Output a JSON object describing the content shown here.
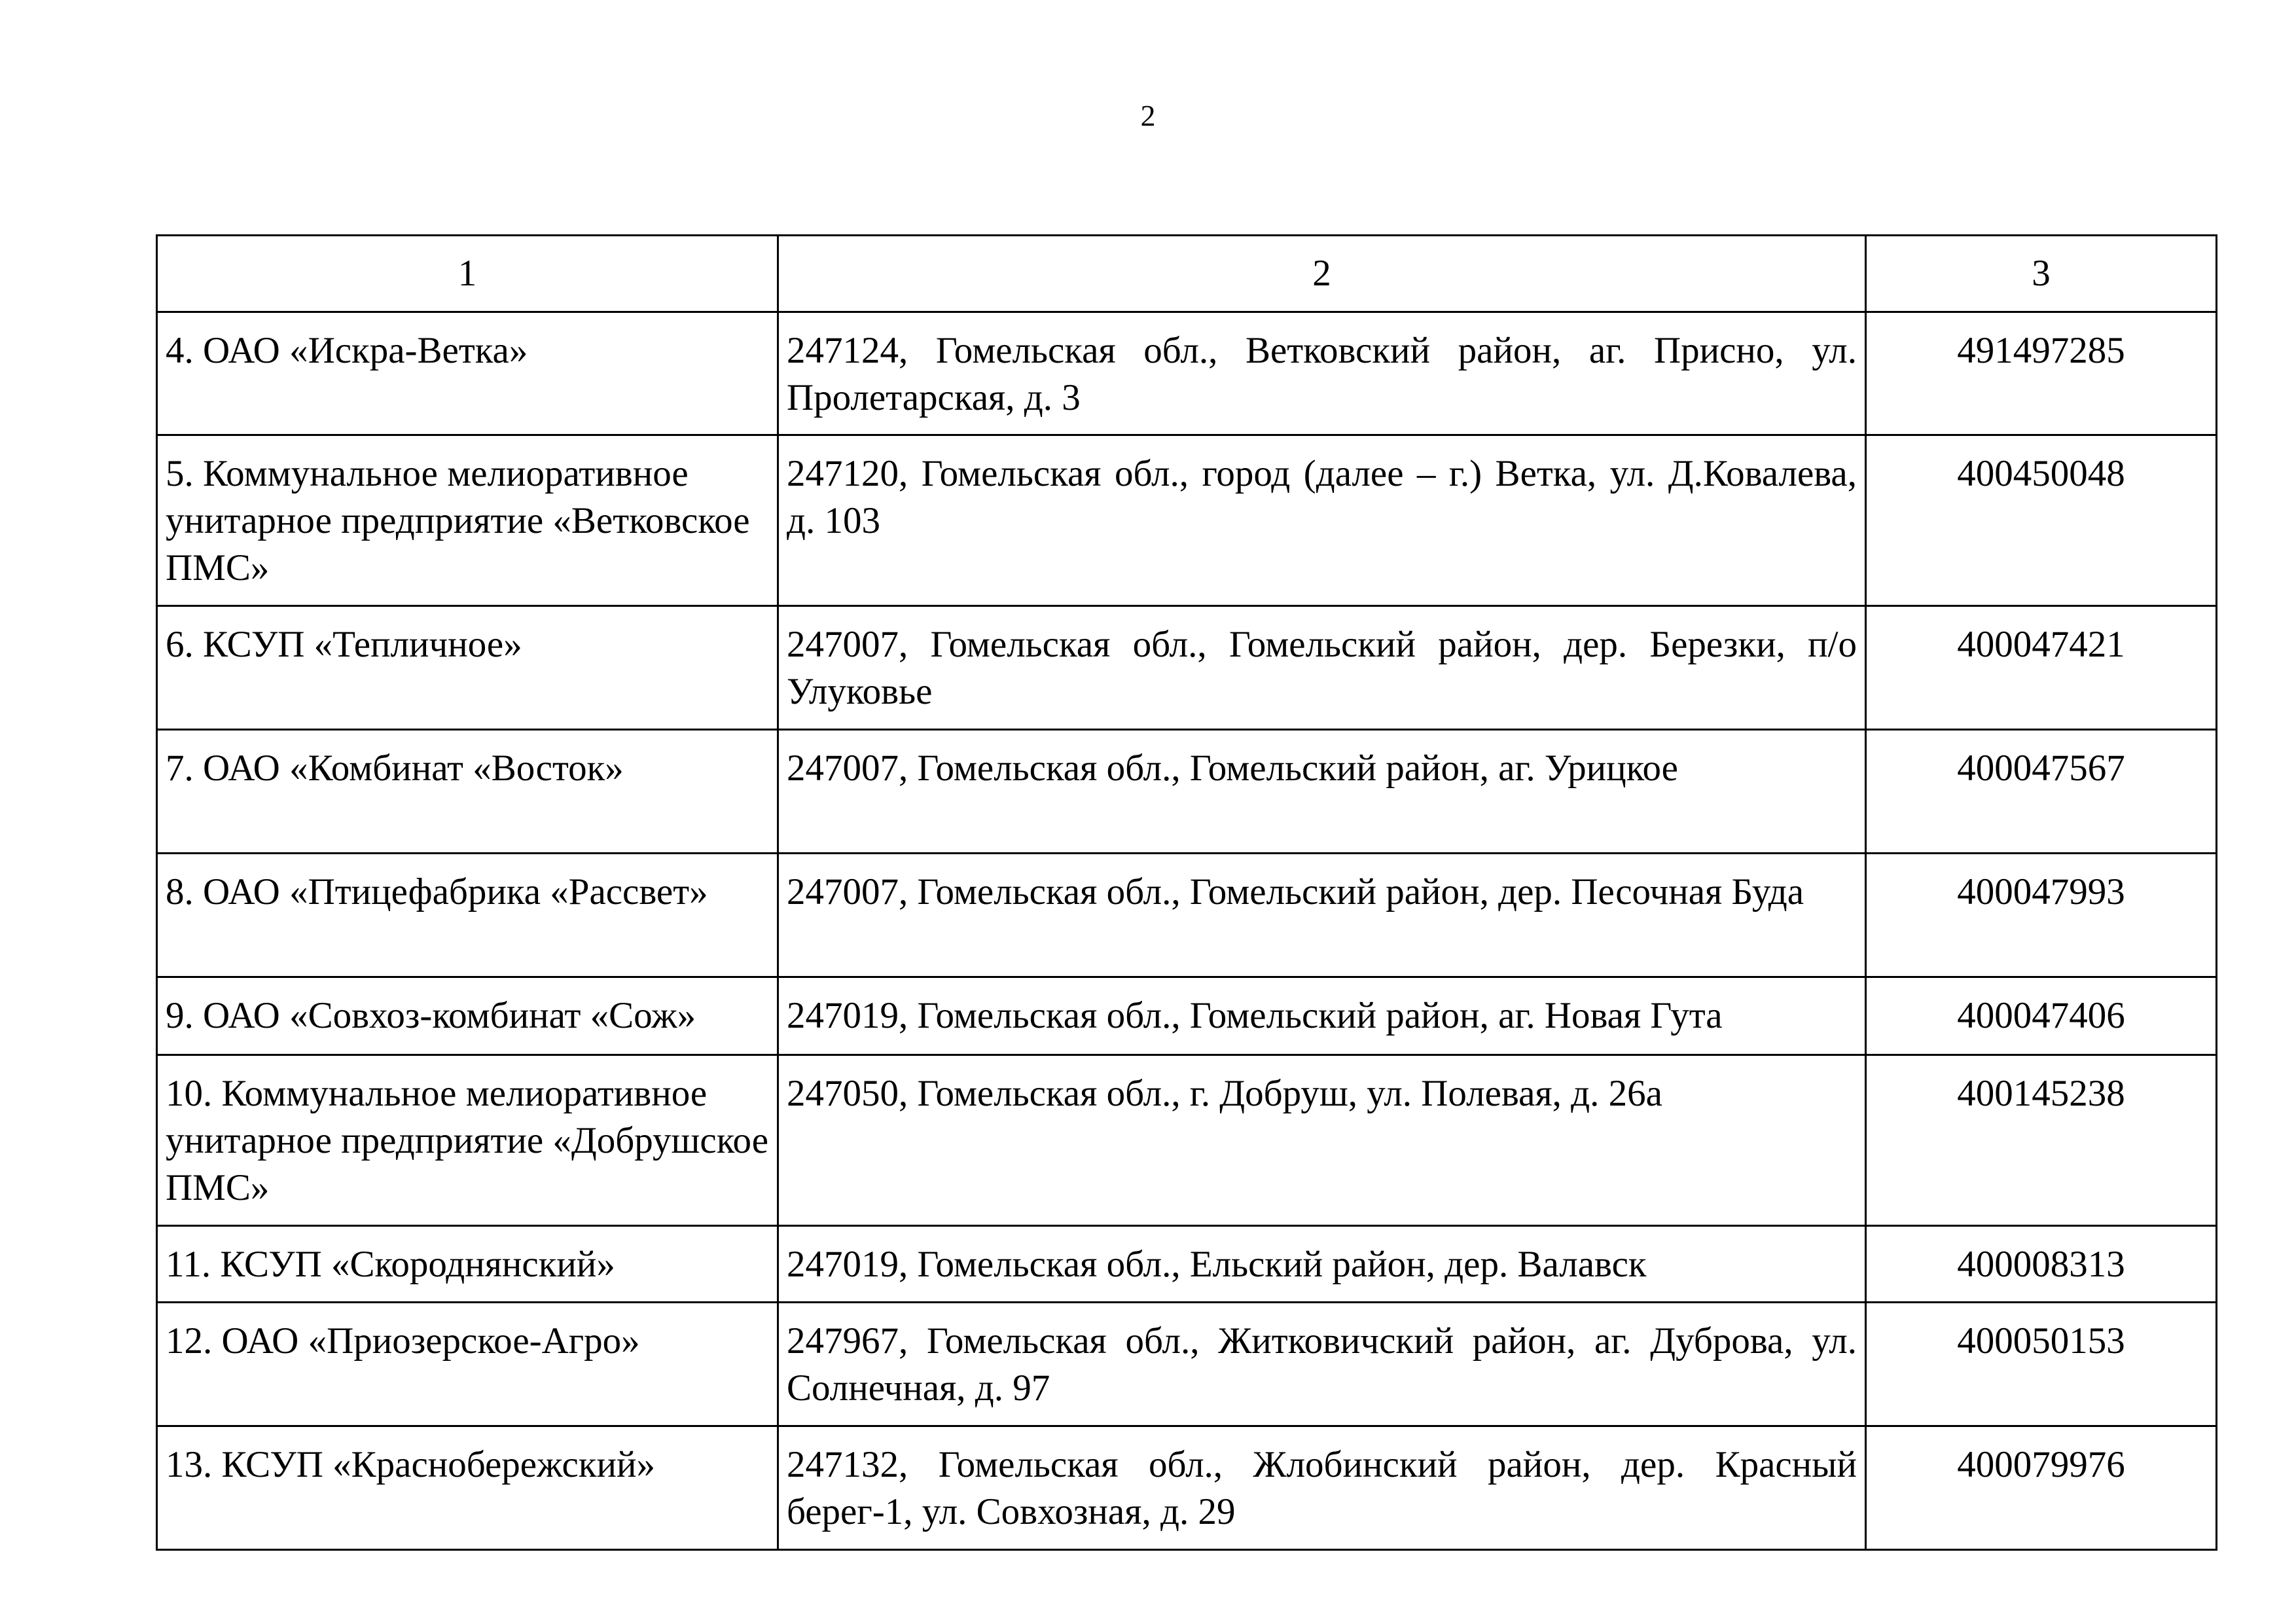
{
  "page_number": "2",
  "table": {
    "headers": [
      "1",
      "2",
      "3"
    ],
    "rows": [
      {
        "name": "4. ОАО «Искра-Ветка»",
        "address": "247124, Гомельская обл., Ветковский район, аг. Присно, ул. Пролетарская, д. 3",
        "code": "491497285"
      },
      {
        "name": "5. Коммунальное мелиоративное унитарное предприятие «Ветковское ПМС»",
        "address": "247120, Гомельская обл., город (далее – г.) Ветка, ул. Д.Ковалева, д. 103",
        "code": "400450048"
      },
      {
        "name": "6. КСУП «Тепличное»",
        "address": "247007, Гомельская обл., Гомельский район, дер. Березки, п/о Улуковье",
        "code": "400047421"
      },
      {
        "name": "7. ОАО «Комбинат «Восток»",
        "address": "247007, Гомельская обл., Гомельский район, аг. Урицкое",
        "code": "400047567"
      },
      {
        "name": "8. ОАО «Птицефабрика «Рассвет»",
        "address": "247007, Гомельская обл., Гомельский район, дер. Песочная Буда",
        "code": "400047993"
      },
      {
        "name": "9. ОАО «Совхоз-комбинат «Сож»",
        "address": "247019, Гомельская обл., Гомельский район, аг. Новая Гута",
        "code": "400047406"
      },
      {
        "name": "10. Коммунальное мелиоративное унитарное предприятие «Добрушское ПМС»",
        "address": "247050, Гомельская обл., г. Добруш, ул. Полевая, д. 26а",
        "code": "400145238"
      },
      {
        "name": "11. КСУП «Скороднянский»",
        "address": "247019, Гомельская обл., Ельский район, дер. Валавск",
        "code": "400008313"
      },
      {
        "name": "12. ОАО «Приозерское-Агро»",
        "address": "247967, Гомельская обл., Житковичский район, аг. Дуброва, ул. Солнечная, д. 97",
        "code": "400050153"
      },
      {
        "name": "13. КСУП «Краснобережский»",
        "address": "247132, Гомельская обл., Жлобинский район, дер. Красный берег-1, ул. Совхозная, д. 29",
        "code": "400079976"
      }
    ]
  }
}
